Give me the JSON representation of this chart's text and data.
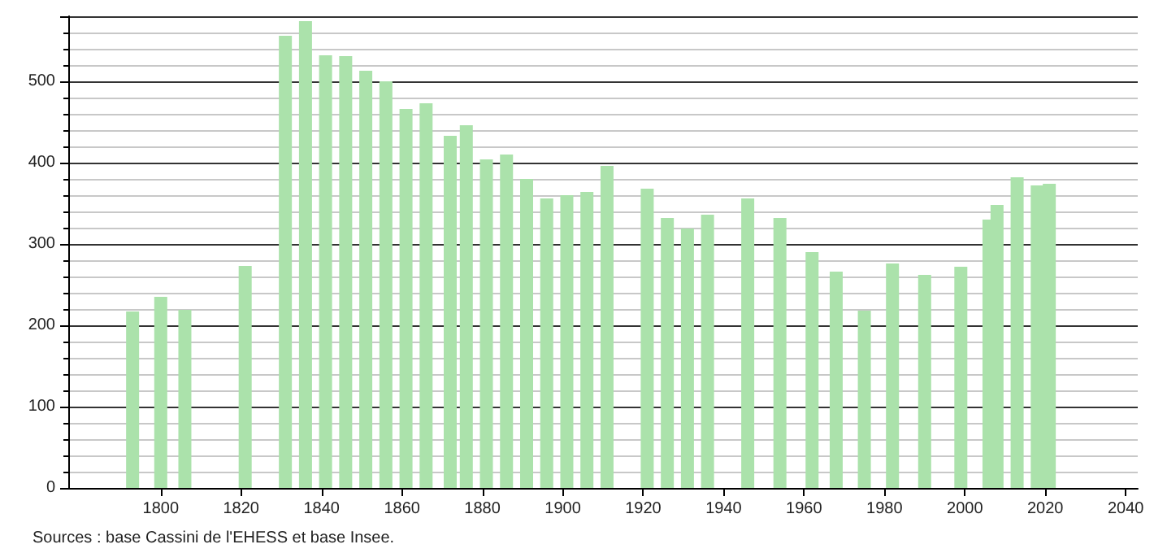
{
  "chart_data": {
    "type": "bar",
    "x": [
      1793,
      1800,
      1806,
      1821,
      1831,
      1836,
      1841,
      1846,
      1851,
      1856,
      1861,
      1866,
      1872,
      1876,
      1881,
      1886,
      1891,
      1896,
      1901,
      1906,
      1911,
      1921,
      1926,
      1931,
      1936,
      1946,
      1954,
      1962,
      1968,
      1975,
      1982,
      1990,
      1999,
      2006,
      2008,
      2013,
      2018,
      2021
    ],
    "values": [
      217,
      235,
      219,
      273,
      556,
      574,
      532,
      531,
      513,
      500,
      466,
      473,
      433,
      446,
      404,
      410,
      380,
      356,
      360,
      364,
      396,
      368,
      332,
      319,
      336,
      356,
      332,
      290,
      266,
      218,
      276,
      262,
      272,
      330,
      348,
      382,
      372,
      374
    ],
    "color": "#abe2ab",
    "xlim": [
      1777,
      2043
    ],
    "xticks": [
      1800,
      1820,
      1840,
      1860,
      1880,
      1900,
      1920,
      1940,
      1960,
      1980,
      2000,
      2020,
      2040
    ],
    "ylim": [
      0,
      580
    ],
    "yticks": [
      0,
      100,
      200,
      300,
      400,
      500
    ],
    "grid": "y",
    "annotations": [
      "Sources : base Cassini de l'EHESS et base Insee."
    ]
  }
}
